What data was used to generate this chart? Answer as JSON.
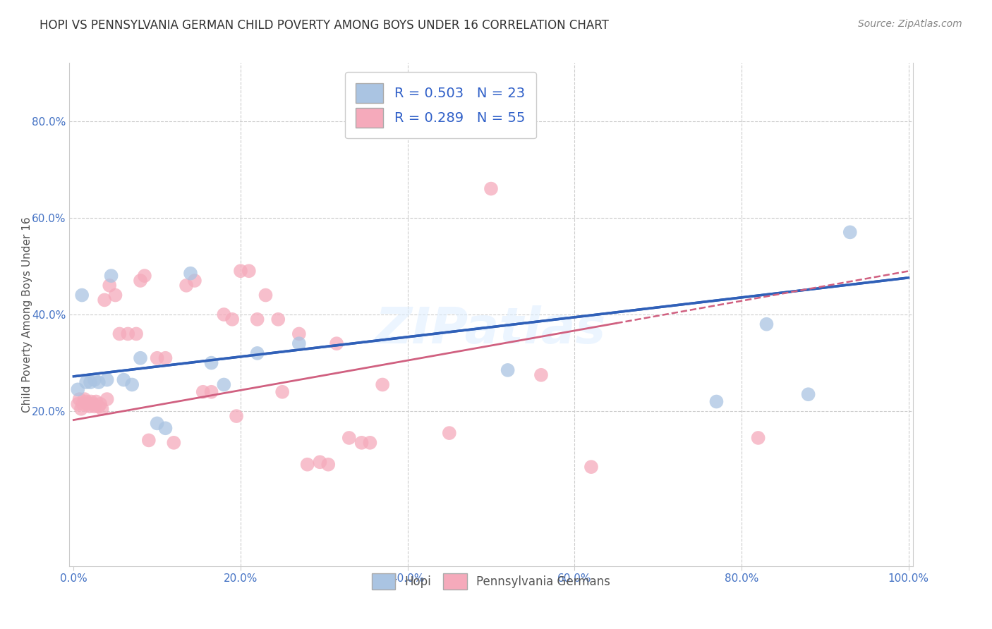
{
  "title": "HOPI VS PENNSYLVANIA GERMAN CHILD POVERTY AMONG BOYS UNDER 16 CORRELATION CHART",
  "source_text": "Source: ZipAtlas.com",
  "ylabel": "Child Poverty Among Boys Under 16",
  "xlabel": "",
  "xlim": [
    -0.005,
    1.005
  ],
  "ylim": [
    -0.12,
    0.92
  ],
  "xtick_labels": [
    "0.0%",
    "",
    "",
    "",
    "",
    "20.0%",
    "",
    "",
    "",
    "",
    "40.0%",
    "",
    "",
    "",
    "",
    "60.0%",
    "",
    "",
    "",
    "",
    "80.0%",
    "",
    "",
    "",
    "",
    "100.0%"
  ],
  "xtick_values": [
    0.0,
    0.04,
    0.08,
    0.12,
    0.16,
    0.2,
    0.24,
    0.28,
    0.32,
    0.36,
    0.4,
    0.44,
    0.48,
    0.52,
    0.56,
    0.6,
    0.64,
    0.68,
    0.72,
    0.76,
    0.8,
    0.84,
    0.88,
    0.92,
    0.96,
    1.0
  ],
  "ytick_labels": [
    "20.0%",
    "40.0%",
    "60.0%",
    "80.0%"
  ],
  "ytick_values": [
    0.2,
    0.4,
    0.6,
    0.8
  ],
  "hgrid_values": [
    0.2,
    0.4,
    0.6,
    0.8
  ],
  "vgrid_values": [
    0.2,
    0.4,
    0.6,
    0.8,
    1.0
  ],
  "hopi_R": 0.503,
  "hopi_N": 23,
  "penn_R": 0.289,
  "penn_N": 55,
  "hopi_color": "#aac4e2",
  "penn_color": "#f5aabb",
  "hopi_line_color": "#3060b8",
  "penn_line_color": "#d06080",
  "legend_text_color": "#3060c8",
  "watermark": "ZIPatlas",
  "hopi_x": [
    0.005,
    0.01,
    0.015,
    0.02,
    0.025,
    0.03,
    0.04,
    0.045,
    0.06,
    0.07,
    0.08,
    0.1,
    0.11,
    0.14,
    0.165,
    0.18,
    0.22,
    0.27,
    0.52,
    0.77,
    0.83,
    0.88,
    0.93
  ],
  "hopi_y": [
    0.245,
    0.44,
    0.26,
    0.26,
    0.265,
    0.26,
    0.265,
    0.48,
    0.265,
    0.255,
    0.31,
    0.175,
    0.165,
    0.485,
    0.3,
    0.255,
    0.32,
    0.34,
    0.285,
    0.22,
    0.38,
    0.235,
    0.57
  ],
  "penn_x": [
    0.005,
    0.007,
    0.009,
    0.011,
    0.013,
    0.015,
    0.017,
    0.019,
    0.021,
    0.023,
    0.025,
    0.027,
    0.03,
    0.032,
    0.034,
    0.037,
    0.04,
    0.043,
    0.05,
    0.055,
    0.065,
    0.075,
    0.08,
    0.085,
    0.09,
    0.1,
    0.11,
    0.12,
    0.135,
    0.145,
    0.155,
    0.165,
    0.18,
    0.19,
    0.195,
    0.2,
    0.21,
    0.22,
    0.23,
    0.245,
    0.25,
    0.27,
    0.28,
    0.295,
    0.305,
    0.315,
    0.33,
    0.345,
    0.355,
    0.37,
    0.45,
    0.5,
    0.56,
    0.62,
    0.82
  ],
  "penn_y": [
    0.215,
    0.225,
    0.205,
    0.215,
    0.225,
    0.22,
    0.215,
    0.21,
    0.22,
    0.215,
    0.21,
    0.22,
    0.21,
    0.215,
    0.205,
    0.43,
    0.225,
    0.46,
    0.44,
    0.36,
    0.36,
    0.36,
    0.47,
    0.48,
    0.14,
    0.31,
    0.31,
    0.135,
    0.46,
    0.47,
    0.24,
    0.24,
    0.4,
    0.39,
    0.19,
    0.49,
    0.49,
    0.39,
    0.44,
    0.39,
    0.24,
    0.36,
    0.09,
    0.095,
    0.09,
    0.34,
    0.145,
    0.135,
    0.135,
    0.255,
    0.155,
    0.66,
    0.275,
    0.085,
    0.145
  ],
  "background_color": "#ffffff",
  "grid_color": "#cccccc",
  "hopi_line_start_x": 0.0,
  "hopi_line_start_y": 0.272,
  "hopi_line_end_x": 1.0,
  "hopi_line_end_y": 0.476,
  "penn_line_start_x": 0.0,
  "penn_line_start_y": 0.182,
  "penn_line_end_x": 0.65,
  "penn_line_end_y": 0.382
}
